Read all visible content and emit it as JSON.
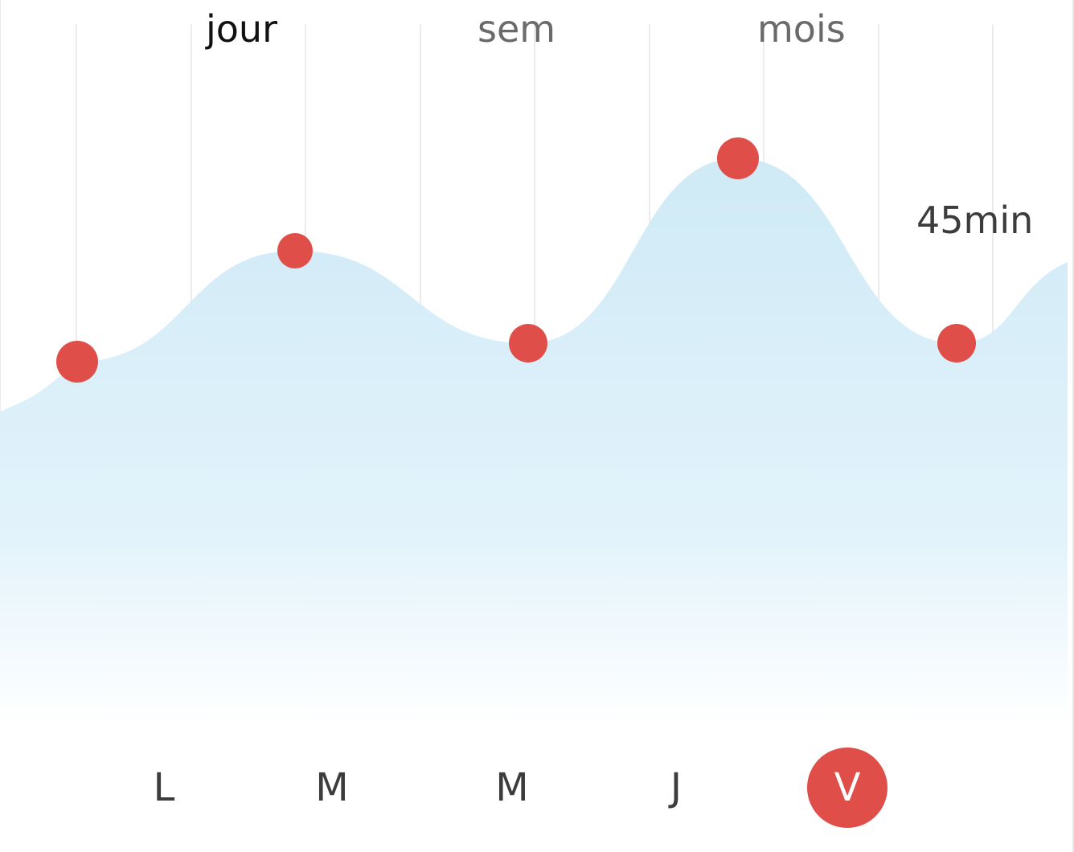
{
  "tabs": [
    {
      "label": "jour",
      "active": true
    },
    {
      "label": "sem",
      "active": false
    },
    {
      "label": "mois",
      "active": false
    }
  ],
  "chart_data": {
    "type": "area",
    "x": [
      "L",
      "M",
      "M",
      "J",
      "V"
    ],
    "series": [
      {
        "values": [
          0.45,
          0.75,
          0.5,
          1.0,
          0.5
        ]
      }
    ],
    "highlight": {
      "index": 4,
      "label": "45min"
    }
  },
  "days": [
    {
      "label": "L",
      "active": false
    },
    {
      "label": "M",
      "active": false
    },
    {
      "label": "M",
      "active": false
    },
    {
      "label": "J",
      "active": false
    },
    {
      "label": "V",
      "active": true
    }
  ],
  "colors": {
    "accent": "#df4e48",
    "area": "#cfeaf6",
    "grid": "#ececec",
    "text": "#3c3c3c",
    "tab_inactive": "#6a6a6a",
    "tab_active": "#111111"
  }
}
